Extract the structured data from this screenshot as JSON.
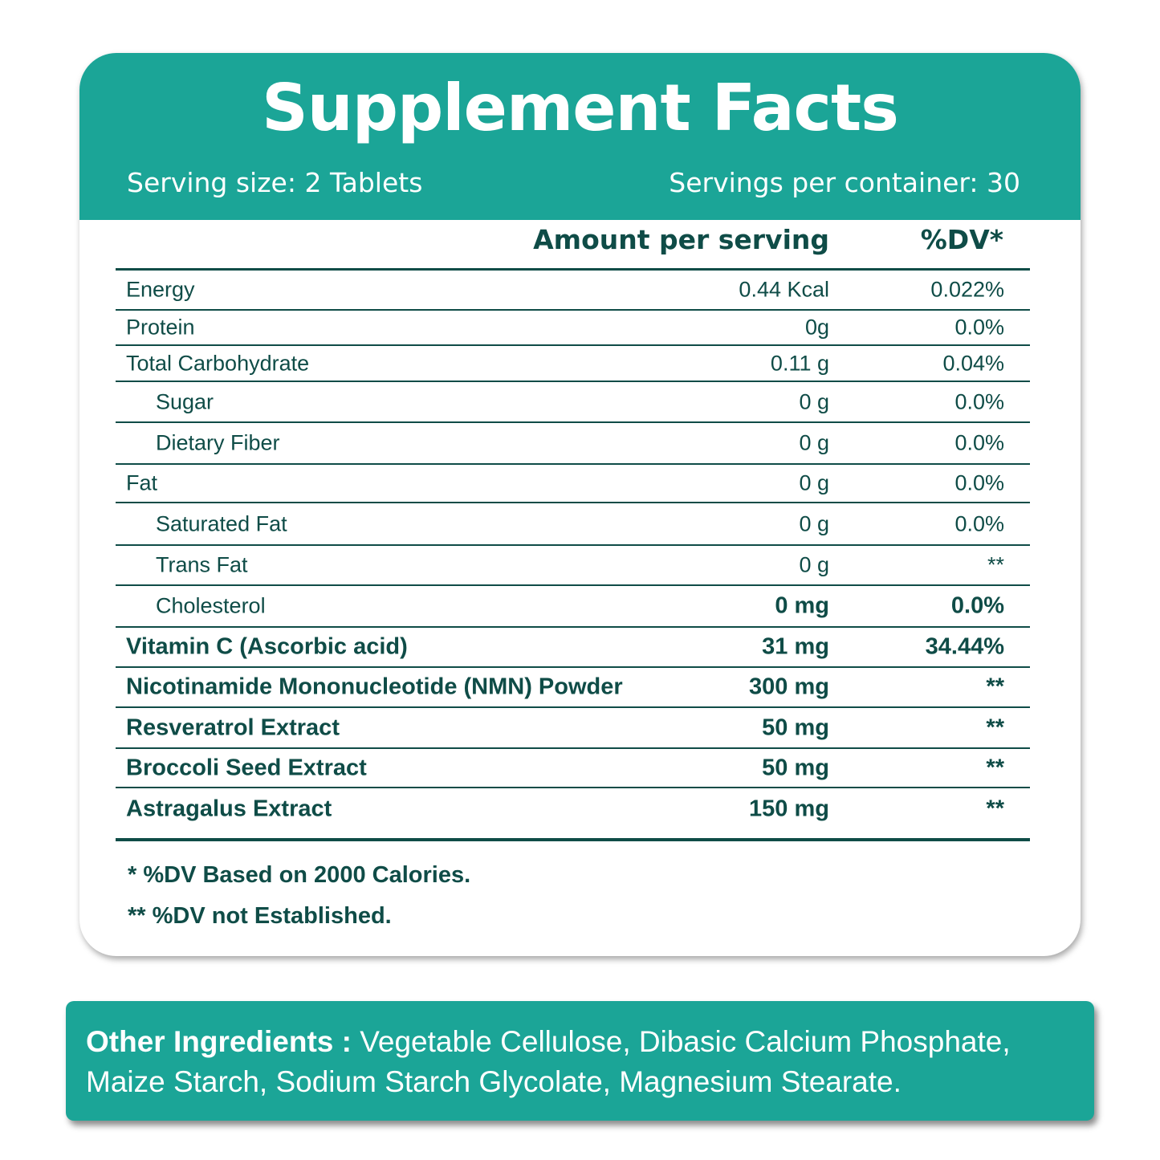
{
  "header": {
    "title": "Supplement Facts",
    "serving_size": "Serving size: 2 Tablets",
    "servings_per_container": "Servings per container: 30",
    "bg_color": "#1ba597"
  },
  "columns": {
    "amount": "Amount per serving",
    "dv": "%DV*"
  },
  "rows": [
    {
      "name": "Energy",
      "amount": "0.44 Kcal",
      "dv": "0.022%"
    },
    {
      "name": "Protein",
      "amount": "0g",
      "dv": "0.0%"
    },
    {
      "name": "Total Carbohydrate",
      "amount": "0.11 g",
      "dv": "0.04%"
    },
    {
      "name": "Sugar",
      "amount": "0 g",
      "dv": "0.0%"
    },
    {
      "name": "Dietary Fiber",
      "amount": "0 g",
      "dv": "0.0%"
    },
    {
      "name": "Fat",
      "amount": "0 g",
      "dv": "0.0%"
    },
    {
      "name": "Saturated Fat",
      "amount": "0 g",
      "dv": "0.0%"
    },
    {
      "name": "Trans Fat",
      "amount": "0 g",
      "dv": "**"
    },
    {
      "name": "Cholesterol",
      "amount": "0 mg",
      "dv": "0.0%"
    },
    {
      "name": "Vitamin C (Ascorbic acid)",
      "amount": "31 mg",
      "dv": "34.44%"
    },
    {
      "name": "Nicotinamide Mononucleotide (NMN) Powder",
      "amount": "300 mg",
      "dv": "**"
    },
    {
      "name": "Resveratrol Extract",
      "amount": "50 mg",
      "dv": "**"
    },
    {
      "name": "Broccoli Seed Extract",
      "amount": "50 mg",
      "dv": "**"
    },
    {
      "name": "Astragalus Extract",
      "amount": "150 mg",
      "dv": "**"
    }
  ],
  "notes": {
    "dv_based": "* %DV Based on 2000 Calories.",
    "dv_not_established": "** %DV not Established."
  },
  "other_ingredients": {
    "label": "Other Ingredients :",
    "text": " Vegetable Cellulose, Dibasic Calcium Phosphate, Maize Starch, Sodium Starch Glycolate, Magnesium Stearate."
  }
}
